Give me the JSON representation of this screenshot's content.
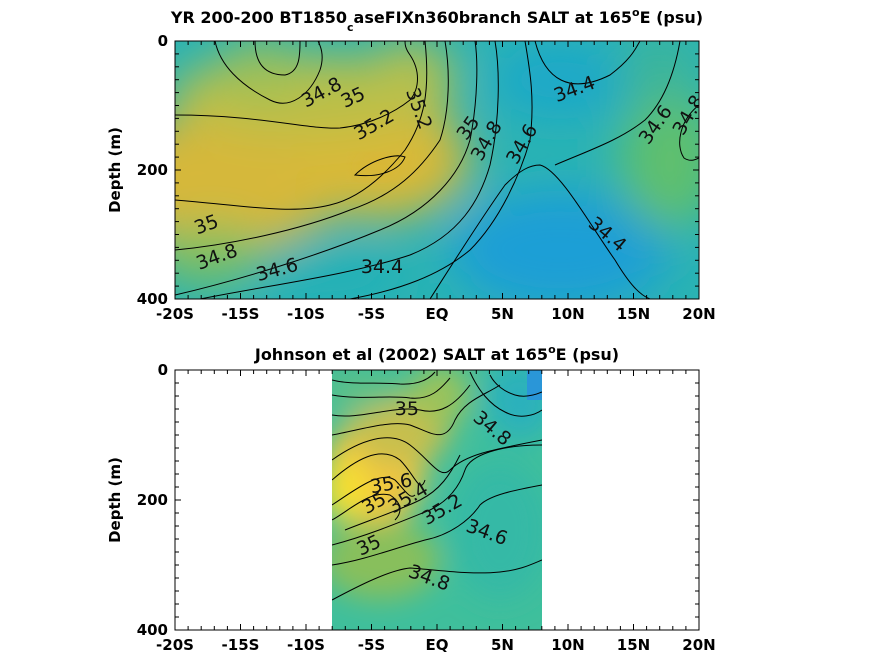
{
  "chart_data": [
    {
      "type": "heatmap",
      "title_main": "YR 200-200 BT1850",
      "title_sub": "c",
      "title_after": "aseFIXn360branch SALT at 165",
      "title_sup": "o",
      "title_end": "E (psu)",
      "ylabel": "Depth (m)",
      "xlim": [
        -20,
        20
      ],
      "ylim": [
        0,
        400
      ],
      "x_tick_values": [
        -20,
        -15,
        -10,
        -5,
        0,
        5,
        10,
        15,
        20
      ],
      "x_tick_labels": [
        "-20S",
        "-15S",
        "-10S",
        "-5S",
        "EQ",
        "5N",
        "10N",
        "15N",
        "20N"
      ],
      "y_tick_values": [
        0,
        200,
        400
      ],
      "y_tick_labels": [
        "0",
        "200",
        "400"
      ],
      "contour_labels": [
        {
          "text": "34.8",
          "x": -8.8,
          "y": 80,
          "angle": -28
        },
        {
          "text": "35",
          "x": -6.4,
          "y": 88,
          "angle": -25
        },
        {
          "text": "35.2",
          "x": -4.8,
          "y": 130,
          "angle": -30
        },
        {
          "text": "35.2",
          "x": -1.4,
          "y": 105,
          "angle": 70
        },
        {
          "text": "35",
          "x": 2.4,
          "y": 135,
          "angle": -55
        },
        {
          "text": "34.8",
          "x": 3.8,
          "y": 155,
          "angle": -60
        },
        {
          "text": "34.6",
          "x": 6.5,
          "y": 160,
          "angle": -60
        },
        {
          "text": "34.4",
          "x": 10.5,
          "y": 75,
          "angle": -20
        },
        {
          "text": "34.6",
          "x": 16.7,
          "y": 130,
          "angle": -55
        },
        {
          "text": "34.8",
          "x": 19.2,
          "y": 115,
          "angle": -60
        },
        {
          "text": "34.4",
          "x": 13,
          "y": 300,
          "angle": 40
        },
        {
          "text": "35",
          "x": -17.6,
          "y": 285,
          "angle": -20
        },
        {
          "text": "34.8",
          "x": -16.8,
          "y": 335,
          "angle": -20
        },
        {
          "text": "34.6",
          "x": -12.2,
          "y": 355,
          "angle": -15
        },
        {
          "text": "34.4",
          "x": -4.2,
          "y": 350,
          "angle": 0
        }
      ]
    },
    {
      "type": "heatmap",
      "title_main": "Johnson et al (2002) SALT at 165",
      "title_sup": "o",
      "title_end": "E (psu)",
      "ylabel": "Depth (m)",
      "xlim": [
        -20,
        20
      ],
      "ylim": [
        0,
        400
      ],
      "data_xlim": [
        -8,
        8
      ],
      "x_tick_values": [
        -20,
        -15,
        -10,
        -5,
        0,
        5,
        10,
        15,
        20
      ],
      "x_tick_labels": [
        "-20S",
        "-15S",
        "-10S",
        "-5S",
        "EQ",
        "5N",
        "10N",
        "15N",
        "20N"
      ],
      "y_tick_values": [
        0,
        200,
        400
      ],
      "y_tick_labels": [
        "0",
        "200",
        "400"
      ],
      "contour_labels": [
        {
          "text": "35",
          "x": -2.3,
          "y": 60,
          "angle": 0
        },
        {
          "text": "34.8",
          "x": 4.2,
          "y": 90,
          "angle": 40
        },
        {
          "text": "35.6",
          "x": -3.5,
          "y": 175,
          "angle": -10
        },
        {
          "text": "35.4",
          "x": -2.2,
          "y": 197,
          "angle": -30
        },
        {
          "text": "35",
          "x": -4.8,
          "y": 205,
          "angle": -30
        },
        {
          "text": "35.2",
          "x": 0.4,
          "y": 215,
          "angle": -30
        },
        {
          "text": "34.6",
          "x": 3.8,
          "y": 250,
          "angle": 20
        },
        {
          "text": "35",
          "x": -5.2,
          "y": 270,
          "angle": -25
        },
        {
          "text": "34.8",
          "x": -0.6,
          "y": 320,
          "angle": 20
        }
      ]
    }
  ]
}
